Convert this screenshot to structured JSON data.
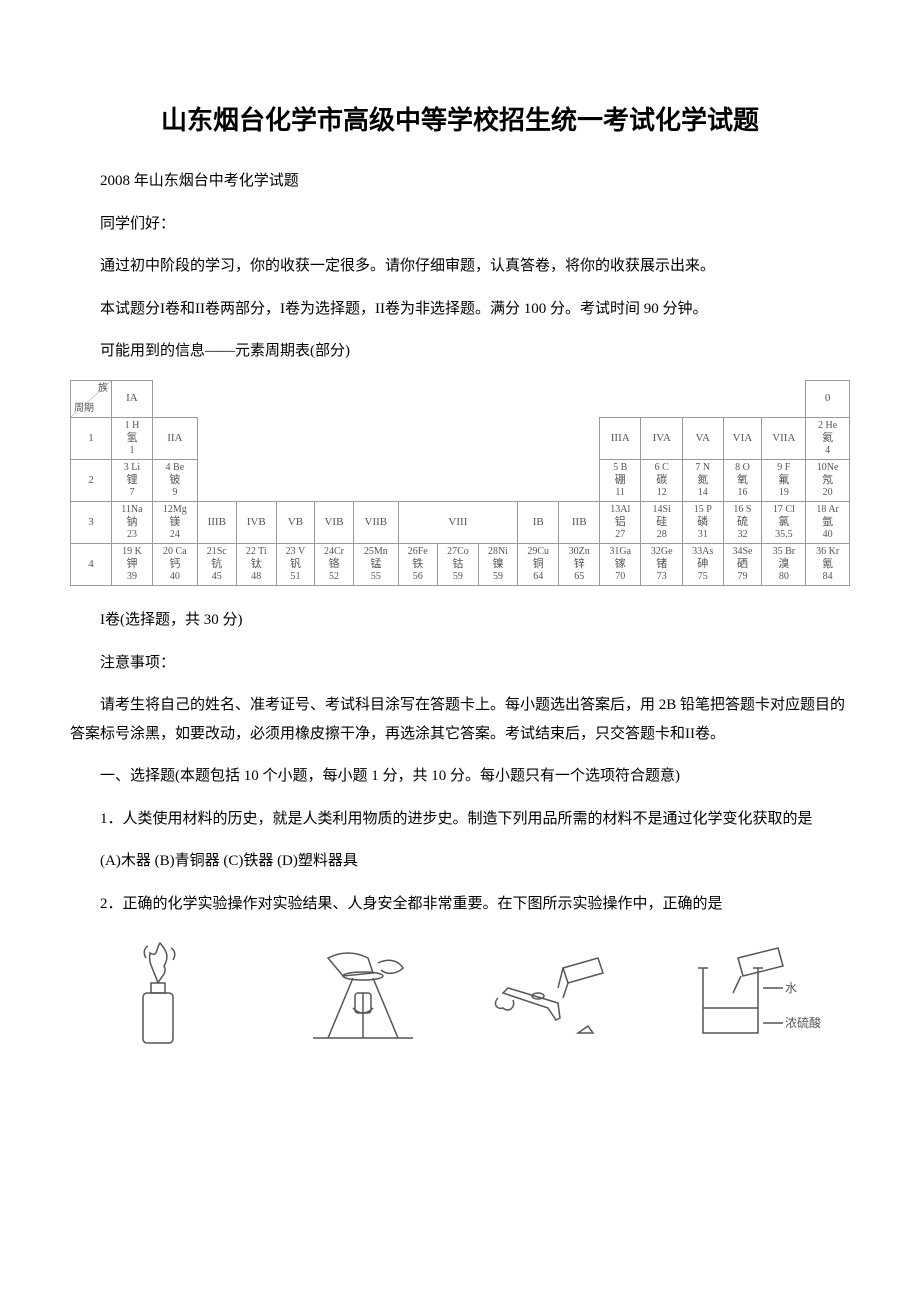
{
  "title": "山东烟台化学市高级中等学校招生统一考试化学试题",
  "subtitle": "2008 年山东烟台中考化学试题",
  "greeting": "同学们好：",
  "intro1": "通过初中阶段的学习，你的收获一定很多。请你仔细审题，认真答卷，将你的收获展示出来。",
  "intro2": "本试题分I卷和II卷两部分，I卷为选择题，II卷为非选择题。满分 100 分。考试时间 90 分钟。",
  "intro3": "可能用到的信息——元素周期表(部分)",
  "section_i": "I卷(选择题，共 30 分)",
  "notice_head": "注意事项：",
  "notice_body": "请考生将自己的姓名、准考证号、考试科目涂写在答题卡上。每小题选出答案后，用 2B 铅笔把答题卡对应题目的答案标号涂黑，如要改动，必须用橡皮擦干净，再选涂其它答案。考试结束后，只交答题卡和II卷。",
  "sec1_head": "一、选择题(本题包括 10 个小题，每小题 1 分，共 10 分。每小题只有一个选项符合题意)",
  "q1": "1．人类使用材料的历史，就是人类利用物质的进步史。制造下列用品所需的材料不是通过化学变化获取的是",
  "q1_opts": "(A)木器 (B)青铜器 (C)铁器 (D)塑料器具",
  "q2": "2．正确的化学实验操作对实验结果、人身安全都非常重要。在下图所示实验操作中，正确的是",
  "ptable": {
    "corner_top": "族",
    "corner_bottom": "周期",
    "cols": [
      "IA",
      "IIA",
      "IIIB",
      "IVB",
      "VB",
      "VIB",
      "VIIB",
      "VIII",
      "VIII",
      "VIII",
      "IB",
      "IIB",
      "IIIA",
      "IVA",
      "VA",
      "VIA",
      "VIIA",
      "0"
    ],
    "rows": [
      {
        "period": "1",
        "cells": [
          {
            "n": "1 H",
            "s": "氢",
            "m": "1"
          },
          null,
          null,
          null,
          null,
          null,
          null,
          null,
          null,
          null,
          null,
          null,
          null,
          null,
          null,
          null,
          null,
          {
            "n": "2 He",
            "s": "氦",
            "m": "4"
          }
        ]
      },
      {
        "period": "2",
        "cells": [
          {
            "n": "3 Li",
            "s": "锂",
            "m": "7"
          },
          {
            "n": "4 Be",
            "s": "铍",
            "m": "9"
          },
          null,
          null,
          null,
          null,
          null,
          null,
          null,
          null,
          null,
          null,
          {
            "n": "5 B",
            "s": "硼",
            "m": "11"
          },
          {
            "n": "6 C",
            "s": "碳",
            "m": "12"
          },
          {
            "n": "7 N",
            "s": "氮",
            "m": "14"
          },
          {
            "n": "8 O",
            "s": "氧",
            "m": "16"
          },
          {
            "n": "9 F",
            "s": "氟",
            "m": "19"
          },
          {
            "n": "10Ne",
            "s": "氖",
            "m": "20"
          }
        ]
      },
      {
        "period": "3",
        "cells": [
          {
            "n": "11Na",
            "s": "钠",
            "m": "23"
          },
          {
            "n": "12Mg",
            "s": "镁",
            "m": "24"
          },
          null,
          null,
          null,
          null,
          null,
          null,
          null,
          null,
          null,
          null,
          {
            "n": "13Al",
            "s": "铝",
            "m": "27"
          },
          {
            "n": "14Si",
            "s": "硅",
            "m": "28"
          },
          {
            "n": "15 P",
            "s": "磷",
            "m": "31"
          },
          {
            "n": "16 S",
            "s": "硫",
            "m": "32"
          },
          {
            "n": "17 Cl",
            "s": "氯",
            "m": "35.5"
          },
          {
            "n": "18 Ar",
            "s": "氩",
            "m": "40"
          }
        ]
      },
      {
        "period": "4",
        "cells": [
          {
            "n": "19 K",
            "s": "钾",
            "m": "39"
          },
          {
            "n": "20 Ca",
            "s": "钙",
            "m": "40"
          },
          {
            "n": "21Sc",
            "s": "钪",
            "m": "45"
          },
          {
            "n": "22 Ti",
            "s": "钛",
            "m": "48"
          },
          {
            "n": "23 V",
            "s": "钒",
            "m": "51"
          },
          {
            "n": "24Cr",
            "s": "铬",
            "m": "52"
          },
          {
            "n": "25Mn",
            "s": "锰",
            "m": "55"
          },
          {
            "n": "26Fe",
            "s": "铁",
            "m": "56"
          },
          {
            "n": "27Co",
            "s": "钴",
            "m": "59"
          },
          {
            "n": "28Ni",
            "s": "镍",
            "m": "59"
          },
          {
            "n": "29Cu",
            "s": "铜",
            "m": "64"
          },
          {
            "n": "30Zn",
            "s": "锌",
            "m": "65"
          },
          {
            "n": "31Ga",
            "s": "镓",
            "m": "70"
          },
          {
            "n": "32Ge",
            "s": "锗",
            "m": "73"
          },
          {
            "n": "33As",
            "s": "砷",
            "m": "75"
          },
          {
            "n": "34Se",
            "s": "硒",
            "m": "79"
          },
          {
            "n": "35 Br",
            "s": "溴",
            "m": "80"
          },
          {
            "n": "36 Kr",
            "s": "氪",
            "m": "84"
          }
        ]
      }
    ]
  },
  "fig_labels": {
    "water": "水",
    "acid": "浓硫酸"
  }
}
